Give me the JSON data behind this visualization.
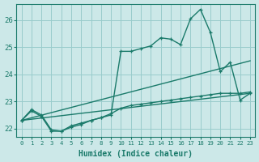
{
  "xlabel": "Humidex (Indice chaleur)",
  "background_color": "#cce8e8",
  "grid_color": "#99cccc",
  "line_color": "#1a7a6a",
  "xlim": [
    -0.5,
    23.5
  ],
  "ylim": [
    21.7,
    26.6
  ],
  "xticks": [
    0,
    1,
    2,
    3,
    4,
    5,
    6,
    7,
    8,
    9,
    10,
    11,
    12,
    13,
    14,
    15,
    16,
    17,
    18,
    19,
    20,
    21,
    22,
    23
  ],
  "yticks": [
    22,
    23,
    24,
    25,
    26
  ],
  "line1_x": [
    0,
    1,
    2,
    3,
    4,
    5,
    6,
    7,
    8,
    9,
    10,
    11,
    12,
    13,
    14,
    15,
    16,
    17,
    18,
    19,
    20,
    21,
    22,
    23
  ],
  "line1_y": [
    22.3,
    22.7,
    22.5,
    21.95,
    21.9,
    22.1,
    22.2,
    22.3,
    22.4,
    22.55,
    22.75,
    22.85,
    22.9,
    22.95,
    23.0,
    23.05,
    23.1,
    23.15,
    23.2,
    23.25,
    23.3,
    23.3,
    23.3,
    23.35
  ],
  "line2_x": [
    0,
    1,
    2,
    3,
    4,
    5,
    6,
    7,
    8,
    9,
    10,
    11,
    12,
    13,
    14,
    15,
    16,
    17,
    18,
    19,
    20,
    21,
    22,
    23
  ],
  "line2_y": [
    22.3,
    22.65,
    22.45,
    21.9,
    21.9,
    22.05,
    22.15,
    22.3,
    22.4,
    22.5,
    24.85,
    24.85,
    24.95,
    25.05,
    25.35,
    25.3,
    25.1,
    26.05,
    26.4,
    25.55,
    24.1,
    24.45,
    23.05,
    23.3
  ],
  "line3_x": [
    0,
    23
  ],
  "line3_y": [
    22.3,
    23.3
  ],
  "line4_x": [
    0,
    23
  ],
  "line4_y": [
    22.3,
    24.5
  ],
  "marker": "+",
  "markersize": 3.5,
  "linewidth": 1.0
}
